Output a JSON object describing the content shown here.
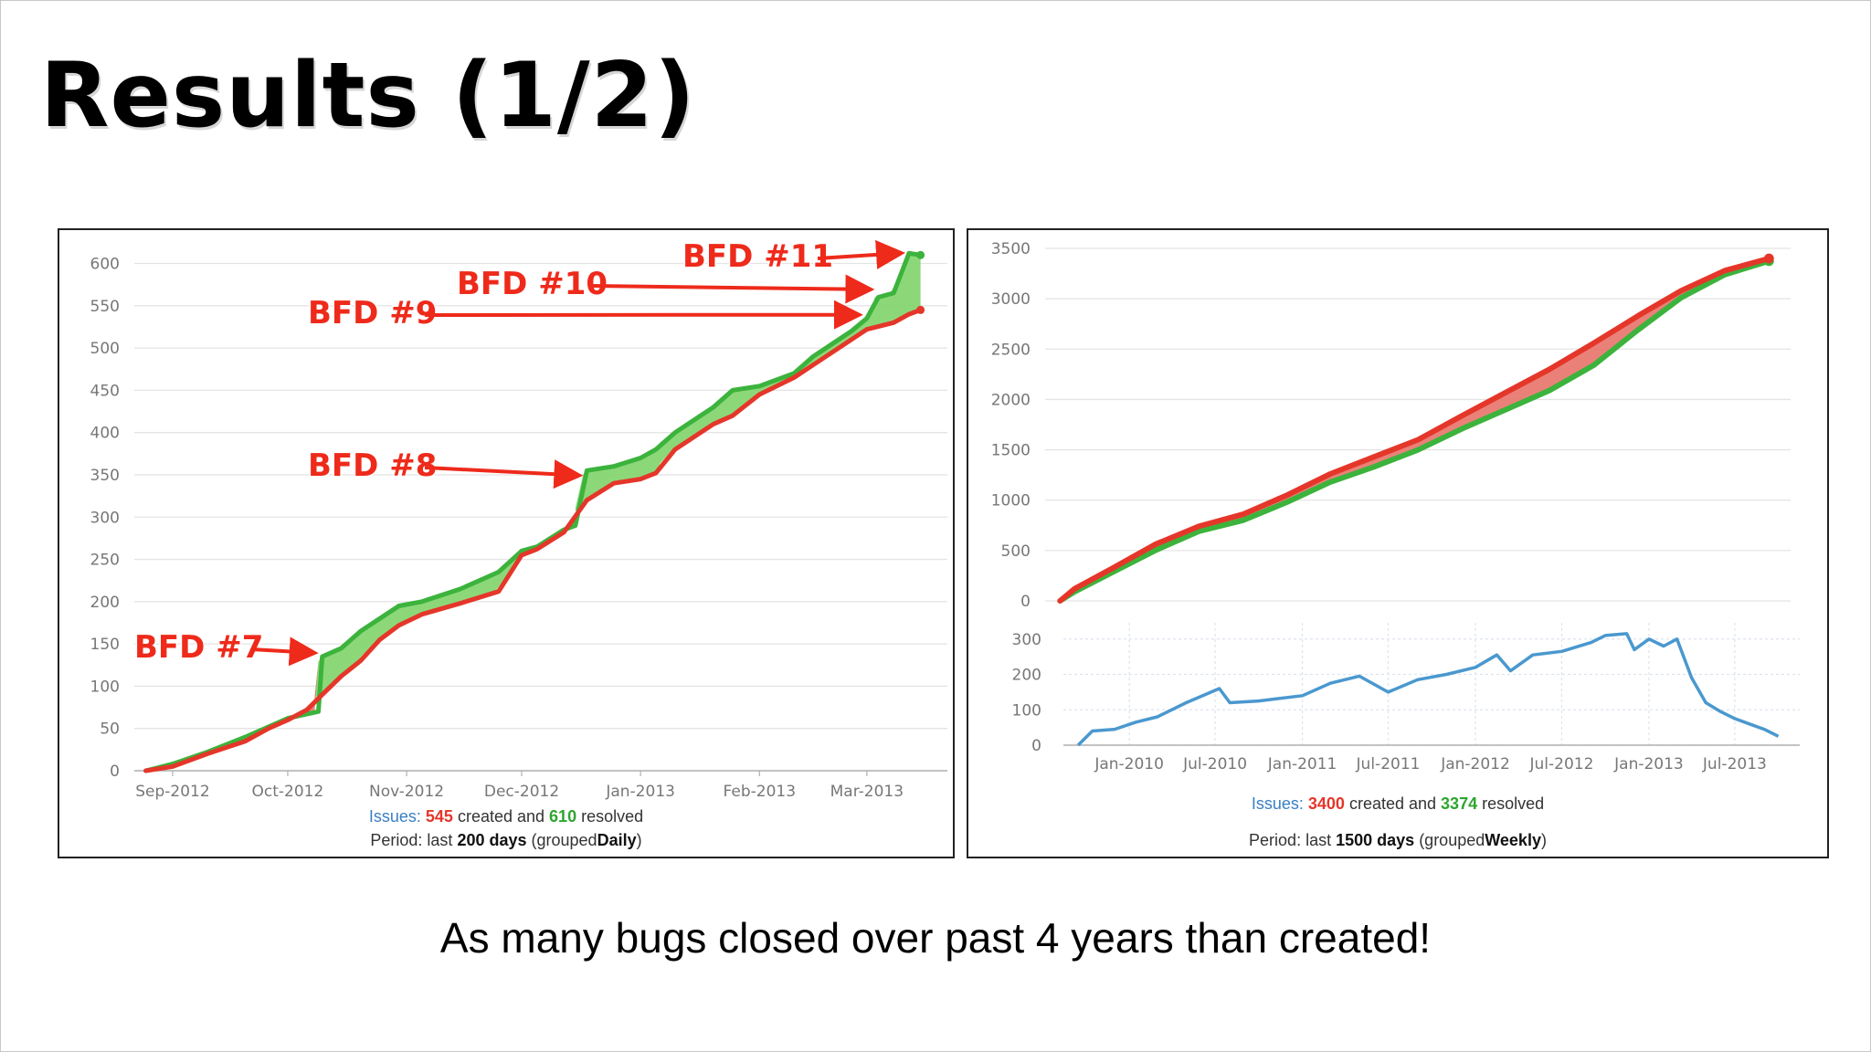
{
  "slide": {
    "title": "Results (1/2)",
    "footer": "As many bugs closed over past 4 years than created!"
  },
  "colors": {
    "created": "#e5362a",
    "resolved": "#3cb33c",
    "fill_resolved_ahead": "#7fd46a",
    "fill_created_ahead": "#e8736a",
    "open_issues": "#4a98cf",
    "annotation": "#ee2a1b"
  },
  "chart_data": [
    {
      "type": "area",
      "subtype": "cumulative line with filled gap",
      "x_type": "date",
      "x_ticks": [
        "Sep-2012",
        "Oct-2012",
        "Nov-2012",
        "Dec-2012",
        "Jan-2013",
        "Feb-2013",
        "Mar-2013"
      ],
      "tick_dates": [
        "2012-09-01",
        "2012-10-01",
        "2012-11-01",
        "2012-12-01",
        "2013-01-01",
        "2013-02-01",
        "2013-03-01"
      ],
      "xlim": [
        "2012-08-22",
        "2013-03-22"
      ],
      "ylim": [
        0,
        620
      ],
      "y_ticks": [
        0,
        50,
        100,
        150,
        200,
        250,
        300,
        350,
        400,
        450,
        500,
        550,
        600
      ],
      "grid": true,
      "series": [
        {
          "name": "created",
          "points": [
            [
              "2012-08-25",
              0
            ],
            [
              "2012-09-01",
              5
            ],
            [
              "2012-09-10",
              20
            ],
            [
              "2012-09-20",
              35
            ],
            [
              "2012-09-26",
              50
            ],
            [
              "2012-10-01",
              60
            ],
            [
              "2012-10-06",
              72
            ],
            [
              "2012-10-10",
              90
            ],
            [
              "2012-10-15",
              112
            ],
            [
              "2012-10-20",
              130
            ],
            [
              "2012-10-25",
              155
            ],
            [
              "2012-10-30",
              172
            ],
            [
              "2012-11-05",
              185
            ],
            [
              "2012-11-15",
              198
            ],
            [
              "2012-11-25",
              212
            ],
            [
              "2012-12-01",
              255
            ],
            [
              "2012-12-05",
              262
            ],
            [
              "2012-12-12",
              282
            ],
            [
              "2012-12-18",
              320
            ],
            [
              "2012-12-25",
              340
            ],
            [
              "2013-01-01",
              345
            ],
            [
              "2013-01-05",
              352
            ],
            [
              "2013-01-10",
              380
            ],
            [
              "2013-01-20",
              410
            ],
            [
              "2013-01-25",
              420
            ],
            [
              "2013-02-01",
              445
            ],
            [
              "2013-02-10",
              465
            ],
            [
              "2013-02-15",
              480
            ],
            [
              "2013-02-20",
              495
            ],
            [
              "2013-02-25",
              510
            ],
            [
              "2013-03-01",
              522
            ],
            [
              "2013-03-08",
              530
            ],
            [
              "2013-03-12",
              540
            ],
            [
              "2013-03-15",
              545
            ]
          ]
        },
        {
          "name": "resolved",
          "points": [
            [
              "2012-08-25",
              0
            ],
            [
              "2012-09-01",
              8
            ],
            [
              "2012-09-10",
              22
            ],
            [
              "2012-09-20",
              40
            ],
            [
              "2012-09-26",
              52
            ],
            [
              "2012-10-01",
              62
            ],
            [
              "2012-10-09",
              70
            ],
            [
              "2012-10-10",
              135
            ],
            [
              "2012-10-15",
              145
            ],
            [
              "2012-10-20",
              165
            ],
            [
              "2012-10-25",
              180
            ],
            [
              "2012-10-30",
              195
            ],
            [
              "2012-11-05",
              200
            ],
            [
              "2012-11-15",
              215
            ],
            [
              "2012-11-25",
              235
            ],
            [
              "2012-12-01",
              260
            ],
            [
              "2012-12-05",
              265
            ],
            [
              "2012-12-12",
              285
            ],
            [
              "2012-12-15",
              290
            ],
            [
              "2012-12-18",
              355
            ],
            [
              "2012-12-25",
              360
            ],
            [
              "2013-01-01",
              370
            ],
            [
              "2013-01-05",
              380
            ],
            [
              "2013-01-10",
              400
            ],
            [
              "2013-01-20",
              430
            ],
            [
              "2013-01-25",
              450
            ],
            [
              "2013-02-01",
              455
            ],
            [
              "2013-02-10",
              470
            ],
            [
              "2013-02-15",
              490
            ],
            [
              "2013-02-20",
              505
            ],
            [
              "2013-02-25",
              520
            ],
            [
              "2013-03-01",
              535
            ],
            [
              "2013-03-04",
              560
            ],
            [
              "2013-03-08",
              565
            ],
            [
              "2013-03-12",
              612
            ],
            [
              "2013-03-15",
              610
            ]
          ]
        }
      ],
      "annotations": [
        {
          "text": "BFD #7",
          "date": "2012-10-10",
          "y": 135
        },
        {
          "text": "BFD #8",
          "date": "2012-12-18",
          "y": 345
        },
        {
          "text": "BFD #9",
          "date": "2013-03-01",
          "y": 535
        },
        {
          "text": "BFD #10",
          "date": "2013-03-04",
          "y": 565
        },
        {
          "text": "BFD #11",
          "date": "2013-03-12",
          "y": 608
        }
      ],
      "summary": {
        "issues_label": "Issues:",
        "created": "545",
        "created_text": "created and",
        "resolved": "610",
        "resolved_text": "resolved",
        "period_label": "Period: last",
        "days": "200 days",
        "grouped_label": "(grouped",
        "grouped": "Daily",
        "close": ")"
      }
    },
    {
      "type": "area",
      "subtype": "cumulative line with filled gap",
      "x_type": "date",
      "xlim": [
        "2009-08-15",
        "2013-11-15"
      ],
      "ylim": [
        0,
        3500
      ],
      "y_ticks": [
        0,
        500,
        1000,
        1500,
        2000,
        2500,
        3000,
        3500
      ],
      "grid": true,
      "series": [
        {
          "name": "created",
          "points": [
            [
              "2009-09-15",
              0
            ],
            [
              "2009-10-15",
              120
            ],
            [
              "2010-01-01",
              320
            ],
            [
              "2010-04-01",
              560
            ],
            [
              "2010-07-01",
              740
            ],
            [
              "2010-10-01",
              860
            ],
            [
              "2011-01-01",
              1050
            ],
            [
              "2011-04-01",
              1260
            ],
            [
              "2011-07-01",
              1430
            ],
            [
              "2011-10-01",
              1600
            ],
            [
              "2012-01-01",
              1840
            ],
            [
              "2012-04-01",
              2070
            ],
            [
              "2012-07-01",
              2300
            ],
            [
              "2012-10-01",
              2560
            ],
            [
              "2013-01-01",
              2830
            ],
            [
              "2013-04-01",
              3080
            ],
            [
              "2013-07-01",
              3280
            ],
            [
              "2013-10-01",
              3400
            ]
          ]
        },
        {
          "name": "resolved",
          "points": [
            [
              "2009-09-15",
              0
            ],
            [
              "2009-10-15",
              90
            ],
            [
              "2010-01-01",
              280
            ],
            [
              "2010-04-01",
              500
            ],
            [
              "2010-07-01",
              690
            ],
            [
              "2010-10-01",
              800
            ],
            [
              "2011-01-01",
              980
            ],
            [
              "2011-04-01",
              1180
            ],
            [
              "2011-07-01",
              1330
            ],
            [
              "2011-10-01",
              1500
            ],
            [
              "2012-01-01",
              1710
            ],
            [
              "2012-04-01",
              1900
            ],
            [
              "2012-07-01",
              2090
            ],
            [
              "2012-10-01",
              2340
            ],
            [
              "2013-01-01",
              2690
            ],
            [
              "2013-04-01",
              3010
            ],
            [
              "2013-07-01",
              3240
            ],
            [
              "2013-10-01",
              3374
            ]
          ]
        }
      ],
      "summary": {
        "issues_label": "Issues:",
        "created": "3400",
        "created_text": "created and",
        "resolved": "3374",
        "resolved_text": "resolved",
        "period_label": "Period: last",
        "days": "1500 days",
        "grouped_label": "(grouped",
        "grouped": "Weekly",
        "close": ")"
      }
    },
    {
      "type": "line",
      "x_type": "date",
      "x_ticks": [
        "Jan-2010",
        "Jul-2010",
        "Jan-2011",
        "Jul-2011",
        "Jan-2012",
        "Jul-2012",
        "Jan-2013",
        "Jul-2013"
      ],
      "tick_dates": [
        "2010-01-01",
        "2010-07-01",
        "2011-01-01",
        "2011-07-01",
        "2012-01-01",
        "2012-07-01",
        "2013-01-01",
        "2013-07-01"
      ],
      "xlim": [
        "2009-08-15",
        "2013-11-15"
      ],
      "ylim": [
        0,
        320
      ],
      "y_ticks": [
        0,
        100,
        200,
        300
      ],
      "grid": true,
      "series": [
        {
          "name": "open",
          "points": [
            [
              "2009-09-15",
              0
            ],
            [
              "2009-10-15",
              40
            ],
            [
              "2009-12-01",
              45
            ],
            [
              "2010-01-15",
              65
            ],
            [
              "2010-03-01",
              80
            ],
            [
              "2010-05-01",
              120
            ],
            [
              "2010-07-10",
              160
            ],
            [
              "2010-08-01",
              120
            ],
            [
              "2010-10-01",
              125
            ],
            [
              "2011-01-01",
              140
            ],
            [
              "2011-03-01",
              175
            ],
            [
              "2011-05-01",
              195
            ],
            [
              "2011-07-01",
              150
            ],
            [
              "2011-09-01",
              185
            ],
            [
              "2011-11-01",
              200
            ],
            [
              "2012-01-01",
              220
            ],
            [
              "2012-02-15",
              255
            ],
            [
              "2012-03-15",
              210
            ],
            [
              "2012-05-01",
              255
            ],
            [
              "2012-07-01",
              265
            ],
            [
              "2012-09-01",
              290
            ],
            [
              "2012-10-01",
              310
            ],
            [
              "2012-11-15",
              315
            ],
            [
              "2012-12-01",
              270
            ],
            [
              "2013-01-01",
              300
            ],
            [
              "2013-02-01",
              280
            ],
            [
              "2013-03-01",
              300
            ],
            [
              "2013-04-01",
              190
            ],
            [
              "2013-05-01",
              120
            ],
            [
              "2013-06-01",
              95
            ],
            [
              "2013-07-01",
              75
            ],
            [
              "2013-08-01",
              60
            ],
            [
              "2013-09-01",
              45
            ],
            [
              "2013-10-01",
              25
            ]
          ]
        }
      ]
    }
  ]
}
